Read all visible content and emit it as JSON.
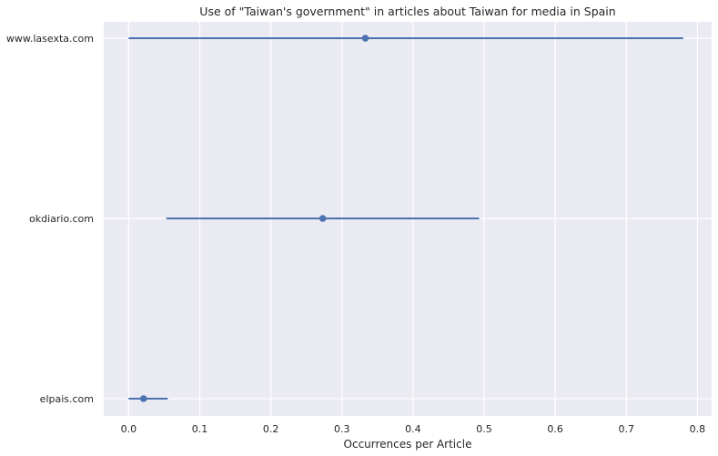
{
  "chart_data": {
    "type": "dot-with-errorbars",
    "title": "Use of \"Taiwan's government\" in articles about Taiwan for media in Spain",
    "xlabel": "Occurrences per Article",
    "ylabel": "",
    "xlim": [
      -0.035,
      0.82
    ],
    "xticks": [
      "0.0",
      "0.1",
      "0.2",
      "0.3",
      "0.4",
      "0.5",
      "0.6",
      "0.7",
      "0.8"
    ],
    "xtick_values": [
      0,
      0.1,
      0.2,
      0.3,
      0.4,
      0.5,
      0.6,
      0.7,
      0.8
    ],
    "categories": [
      "www.lasexta.com",
      "okdiario.com",
      "elpais.com"
    ],
    "points": [
      {
        "category": "www.lasexta.com",
        "value": 0.333,
        "low": 0.0,
        "high": 0.78
      },
      {
        "category": "okdiario.com",
        "value": 0.273,
        "low": 0.053,
        "high": 0.493
      },
      {
        "category": "elpais.com",
        "value": 0.021,
        "low": 0.0,
        "high": 0.055
      }
    ],
    "grid": true,
    "colors": {
      "series": "#4c72b0",
      "background": "#eaeaf2",
      "grid": "#ffffff"
    }
  }
}
